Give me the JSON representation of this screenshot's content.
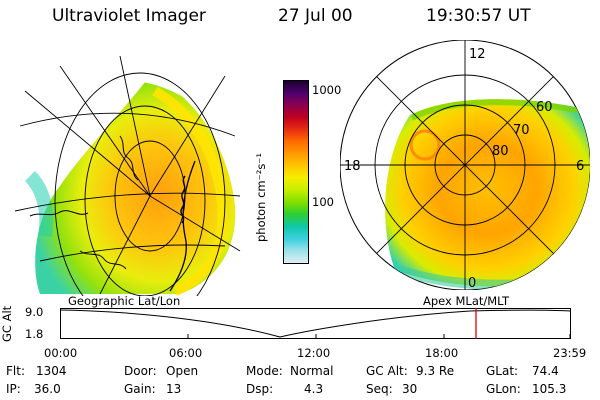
{
  "header": {
    "instrument": "Ultraviolet Imager",
    "date": "27 Jul 00",
    "time": "19:30:57 UT"
  },
  "colorbar": {
    "label": "photon cm⁻²s⁻¹",
    "tick_top": "1000",
    "tick_mid": "100",
    "colors": [
      "#1a0030",
      "#500070",
      "#8a0050",
      "#c00020",
      "#e83010",
      "#ff6a00",
      "#ff9a00",
      "#ffc800",
      "#f6ee00",
      "#c6ee00",
      "#7ede00",
      "#2ece30",
      "#10c8a8",
      "#40d0e0",
      "#9ae0ea",
      "#e0eef0"
    ]
  },
  "polar": {
    "mlat_labels": [
      "60",
      "70",
      "80"
    ],
    "mlt_labels": [
      "12",
      "18",
      "6",
      "0"
    ]
  },
  "plot": {
    "left_title": "Geographic Lat/Lon",
    "right_title": "Apex MLat/MLT",
    "y_axis_label": "GC Alt",
    "y_tick_top": "9.0",
    "y_tick_bottom": "1.8",
    "x_ticks": [
      "00:00",
      "06:00",
      "12:00",
      "18:00",
      "23:59"
    ],
    "marker_time": "19:30:57",
    "marker_color": "#e00000"
  },
  "status": {
    "flt_label": "Flt:",
    "flt_value": "1304",
    "ip_label": "IP:",
    "ip_value": "36.0",
    "door_label": "Door:",
    "door_value": "Open",
    "gain_label": "Gain:",
    "gain_value": "13",
    "mode_label": "Mode:",
    "mode_value": "Normal",
    "dsp_label": "Dsp:",
    "dsp_value": "4.3",
    "gcalt_label": "GC Alt:",
    "gcalt_value": "9.3 Re",
    "seq_label": "Seq:",
    "seq_value": "30",
    "glat_label": "GLat:",
    "glat_value": "74.4",
    "glon_label": "GLon:",
    "glon_value": "105.3"
  }
}
